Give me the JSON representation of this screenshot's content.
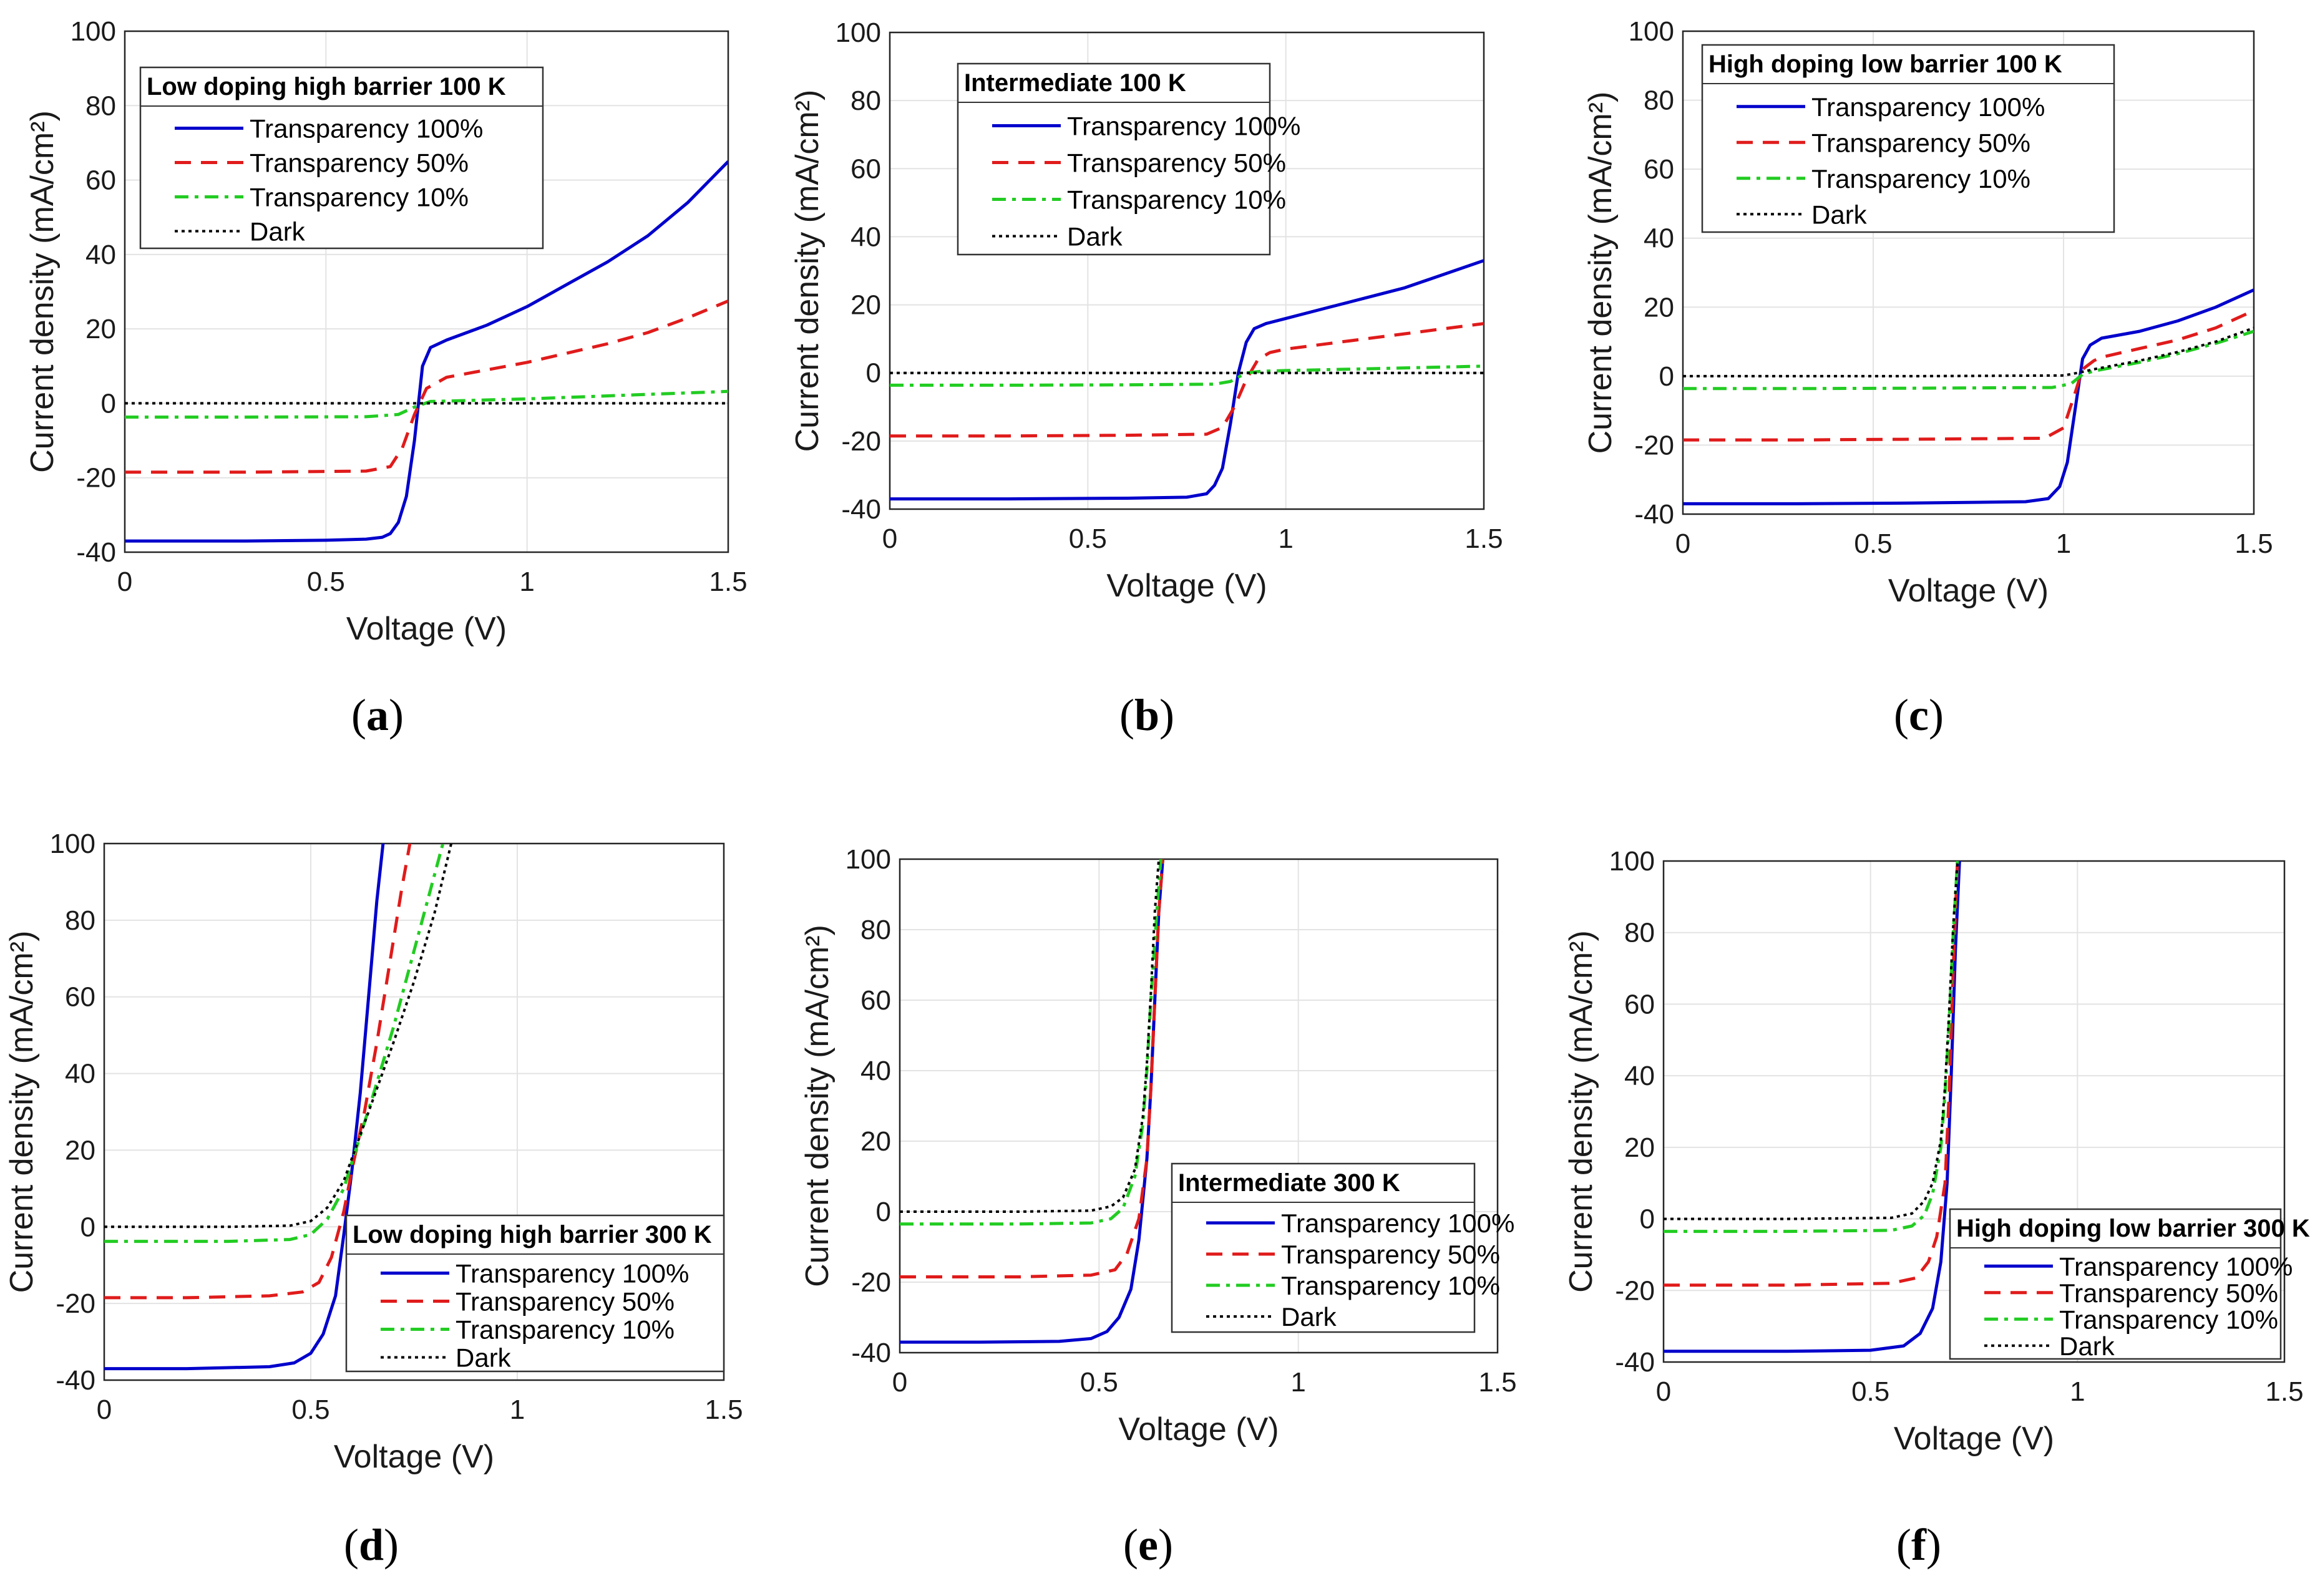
{
  "series_styles": [
    {
      "name": "Transparency 100%",
      "color": "#0000cc",
      "dash": ""
    },
    {
      "name": "Transparency 50%",
      "color": "#e01b1b",
      "dash": "26 16"
    },
    {
      "name": "Transparency 10%",
      "color": "#22cc22",
      "dash": "22 10 6 10"
    },
    {
      "name": "Dark",
      "color": "#000000",
      "dash": "5 6"
    }
  ],
  "chart_data": [
    {
      "panel": "a",
      "type": "line",
      "title": "Low doping high barrier 100 K",
      "xlabel": "Voltage (V)",
      "ylabel": "Current density (mA/cm²)",
      "xlim": [
        0,
        1.5
      ],
      "ylim": [
        -40,
        100
      ],
      "xticks": [
        "0",
        "0.5",
        "1",
        "1.5"
      ],
      "yticks": [
        "-40",
        "-20",
        "0",
        "20",
        "40",
        "60",
        "80",
        "100"
      ],
      "legend": "top-left",
      "series": [
        {
          "name": "Transparency 100%",
          "x": [
            0,
            0.3,
            0.5,
            0.6,
            0.64,
            0.66,
            0.68,
            0.7,
            0.72,
            0.74,
            0.76,
            0.8,
            0.9,
            1.0,
            1.1,
            1.2,
            1.3,
            1.4,
            1.5
          ],
          "y": [
            -37,
            -37,
            -36.8,
            -36.5,
            -36,
            -35,
            -32,
            -25,
            -10,
            10,
            15,
            17,
            21,
            26,
            32,
            38,
            45,
            54,
            65
          ]
        },
        {
          "name": "Transparency 50%",
          "x": [
            0,
            0.3,
            0.6,
            0.66,
            0.69,
            0.72,
            0.75,
            0.8,
            0.9,
            1.0,
            1.1,
            1.2,
            1.3,
            1.4,
            1.5
          ],
          "y": [
            -18.5,
            -18.5,
            -18.2,
            -17,
            -12,
            -3,
            4,
            7,
            9,
            11,
            13.5,
            16,
            19,
            23,
            27.5
          ]
        },
        {
          "name": "Transparency 10%",
          "x": [
            0,
            0.3,
            0.6,
            0.68,
            0.72,
            0.76,
            0.8,
            1.0,
            1.2,
            1.5
          ],
          "y": [
            -3.7,
            -3.7,
            -3.6,
            -3,
            -1,
            0.5,
            0.6,
            1.2,
            2,
            3.2
          ]
        },
        {
          "name": "Dark",
          "x": [
            0,
            0.5,
            1.0,
            1.5
          ],
          "y": [
            0,
            0,
            0,
            0
          ]
        }
      ]
    },
    {
      "panel": "b",
      "type": "line",
      "title": "Intermediate 100 K",
      "xlabel": "Voltage (V)",
      "ylabel": "Current density (mA/cm²)",
      "xlim": [
        0,
        1.5
      ],
      "ylim": [
        -40,
        100
      ],
      "xticks": [
        "0",
        "0.5",
        "1",
        "1.5"
      ],
      "yticks": [
        "-40",
        "-20",
        "0",
        "20",
        "40",
        "60",
        "80",
        "100"
      ],
      "legend": "top-left",
      "series": [
        {
          "name": "Transparency 100%",
          "x": [
            0,
            0.3,
            0.6,
            0.75,
            0.8,
            0.82,
            0.84,
            0.86,
            0.88,
            0.9,
            0.92,
            0.95,
            1.0,
            1.1,
            1.2,
            1.3,
            1.4,
            1.5
          ],
          "y": [
            -37,
            -37,
            -36.8,
            -36.5,
            -35.5,
            -33,
            -28,
            -15,
            0,
            9,
            13,
            14.5,
            16,
            19,
            22,
            25,
            29,
            33
          ]
        },
        {
          "name": "Transparency 50%",
          "x": [
            0,
            0.3,
            0.6,
            0.8,
            0.84,
            0.87,
            0.9,
            0.93,
            0.96,
            1.0,
            1.1,
            1.2,
            1.3,
            1.4,
            1.5
          ],
          "y": [
            -18.5,
            -18.5,
            -18.3,
            -18,
            -16,
            -10,
            -2,
            4,
            6,
            7,
            8.5,
            10,
            11.5,
            13,
            14.5
          ]
        },
        {
          "name": "Transparency 10%",
          "x": [
            0,
            0.3,
            0.6,
            0.82,
            0.86,
            0.9,
            0.94,
            1.0,
            1.2,
            1.5
          ],
          "y": [
            -3.6,
            -3.6,
            -3.5,
            -3.3,
            -2.5,
            0,
            0.5,
            0.7,
            1.2,
            2
          ]
        },
        {
          "name": "Dark",
          "x": [
            0,
            0.5,
            1.0,
            1.5
          ],
          "y": [
            0,
            0,
            0,
            0
          ]
        }
      ]
    },
    {
      "panel": "c",
      "type": "line",
      "title": "High doping low barrier 100 K",
      "xlabel": "Voltage (V)",
      "ylabel": "Current density (mA/cm²)",
      "xlim": [
        0,
        1.5
      ],
      "ylim": [
        -40,
        100
      ],
      "xticks": [
        "0",
        "0.5",
        "1",
        "1.5"
      ],
      "yticks": [
        "-40",
        "-20",
        "0",
        "20",
        "40",
        "60",
        "80",
        "100"
      ],
      "legend": "top-left",
      "series": [
        {
          "name": "Transparency 100%",
          "x": [
            0,
            0.3,
            0.6,
            0.9,
            0.96,
            0.99,
            1.01,
            1.03,
            1.05,
            1.07,
            1.1,
            1.2,
            1.3,
            1.4,
            1.5
          ],
          "y": [
            -37,
            -37,
            -36.8,
            -36.4,
            -35.5,
            -32,
            -25,
            -10,
            5,
            9,
            11,
            13,
            16,
            20,
            25
          ]
        },
        {
          "name": "Transparency 50%",
          "x": [
            0,
            0.3,
            0.6,
            0.95,
            1.0,
            1.03,
            1.05,
            1.08,
            1.1,
            1.2,
            1.3,
            1.4,
            1.5
          ],
          "y": [
            -18.5,
            -18.5,
            -18.3,
            -18,
            -15,
            -5,
            2,
            4.5,
            5.5,
            8,
            10.5,
            14,
            19
          ]
        },
        {
          "name": "Transparency 10%",
          "x": [
            0,
            0.3,
            0.6,
            0.97,
            1.02,
            1.05,
            1.08,
            1.2,
            1.3,
            1.4,
            1.5
          ],
          "y": [
            -3.6,
            -3.6,
            -3.5,
            -3.3,
            -2.2,
            0.5,
            1.5,
            4,
            6.5,
            9.5,
            13
          ]
        },
        {
          "name": "Dark",
          "x": [
            0,
            0.6,
            1.0,
            1.04,
            1.08,
            1.2,
            1.3,
            1.4,
            1.5
          ],
          "y": [
            0,
            0,
            0.2,
            1,
            2,
            4.5,
            7,
            10,
            14
          ]
        }
      ]
    },
    {
      "panel": "d",
      "type": "line",
      "title": "Low doping high barrier 300 K",
      "xlabel": "Voltage (V)",
      "ylabel": "Current density (mA/cm²)",
      "xlim": [
        0,
        1.5
      ],
      "ylim": [
        -40,
        100
      ],
      "xticks": [
        "0",
        "0.5",
        "1",
        "1.5"
      ],
      "yticks": [
        "-40",
        "-20",
        "0",
        "20",
        "40",
        "60",
        "80",
        "100"
      ],
      "legend": "bottom-right",
      "series": [
        {
          "name": "Transparency 100%",
          "x": [
            0,
            0.2,
            0.4,
            0.46,
            0.5,
            0.53,
            0.56,
            0.58,
            0.6,
            0.62,
            0.64,
            0.66,
            0.675
          ],
          "y": [
            -37,
            -37,
            -36.5,
            -35.5,
            -33,
            -28,
            -18,
            -2,
            15,
            35,
            60,
            85,
            100
          ]
        },
        {
          "name": "Transparency 50%",
          "x": [
            0,
            0.2,
            0.4,
            0.48,
            0.52,
            0.55,
            0.58,
            0.6,
            0.63,
            0.66,
            0.69,
            0.72,
            0.74
          ],
          "y": [
            -18.5,
            -18.5,
            -18,
            -17,
            -14.5,
            -8,
            4,
            15,
            30,
            48,
            68,
            88,
            100
          ]
        },
        {
          "name": "Transparency 10%",
          "x": [
            0,
            0.3,
            0.45,
            0.5,
            0.54,
            0.58,
            0.6,
            0.65,
            0.7,
            0.75,
            0.8,
            0.82
          ],
          "y": [
            -3.8,
            -3.8,
            -3.3,
            -2,
            2,
            10,
            17,
            34,
            52,
            72,
            92,
            100
          ]
        },
        {
          "name": "Dark",
          "x": [
            0,
            0.3,
            0.45,
            0.5,
            0.54,
            0.58,
            0.6,
            0.65,
            0.7,
            0.75,
            0.8,
            0.84
          ],
          "y": [
            0,
            0,
            0.3,
            1.5,
            5,
            12,
            18,
            33,
            48,
            64,
            82,
            100
          ]
        }
      ]
    },
    {
      "panel": "e",
      "type": "line",
      "title": "Intermediate 300 K",
      "xlabel": "Voltage (V)",
      "ylabel": "Current density (mA/cm²)",
      "xlim": [
        0,
        1.5
      ],
      "ylim": [
        -40,
        100
      ],
      "xticks": [
        "0",
        "0.5",
        "1",
        "1.5"
      ],
      "yticks": [
        "-40",
        "-20",
        "0",
        "20",
        "40",
        "60",
        "80",
        "100"
      ],
      "legend": "bottom-right",
      "series": [
        {
          "name": "Transparency 100%",
          "x": [
            0,
            0.2,
            0.4,
            0.48,
            0.52,
            0.55,
            0.58,
            0.6,
            0.62,
            0.63,
            0.64,
            0.65,
            0.66
          ],
          "y": [
            -37,
            -37,
            -36.8,
            -36,
            -34,
            -30,
            -22,
            -8,
            15,
            35,
            60,
            85,
            100
          ]
        },
        {
          "name": "Transparency 50%",
          "x": [
            0,
            0.3,
            0.48,
            0.54,
            0.57,
            0.6,
            0.62,
            0.63,
            0.64,
            0.65,
            0.66
          ],
          "y": [
            -18.5,
            -18.5,
            -18,
            -16.5,
            -12,
            -2,
            15,
            35,
            60,
            85,
            100
          ]
        },
        {
          "name": "Transparency 10%",
          "x": [
            0,
            0.3,
            0.48,
            0.53,
            0.56,
            0.59,
            0.61,
            0.62,
            0.63,
            0.645,
            0.655
          ],
          "y": [
            -3.5,
            -3.5,
            -3.2,
            -2,
            1,
            10,
            25,
            40,
            60,
            85,
            100
          ]
        },
        {
          "name": "Dark",
          "x": [
            0,
            0.3,
            0.48,
            0.53,
            0.56,
            0.59,
            0.61,
            0.62,
            0.63,
            0.64,
            0.65
          ],
          "y": [
            0,
            0,
            0.3,
            1.5,
            4,
            12,
            27,
            42,
            62,
            85,
            100
          ]
        }
      ]
    },
    {
      "panel": "f",
      "type": "line",
      "title": "High doping low barrier 300 K",
      "xlabel": "Voltage (V)",
      "ylabel": "Current density (mA/cm²)",
      "xlim": [
        0,
        1.5
      ],
      "ylim": [
        -40,
        100
      ],
      "xticks": [
        "0",
        "0.5",
        "1",
        "1.5"
      ],
      "yticks": [
        "-40",
        "-20",
        "0",
        "20",
        "40",
        "60",
        "80",
        "100"
      ],
      "legend": "bottom-right",
      "series": [
        {
          "name": "Transparency 100%",
          "x": [
            0,
            0.3,
            0.5,
            0.58,
            0.62,
            0.65,
            0.67,
            0.685,
            0.695,
            0.705,
            0.715
          ],
          "y": [
            -37,
            -37,
            -36.7,
            -35.5,
            -32,
            -25,
            -12,
            10,
            40,
            75,
            100
          ]
        },
        {
          "name": "Transparency 50%",
          "x": [
            0,
            0.3,
            0.55,
            0.61,
            0.64,
            0.66,
            0.68,
            0.69,
            0.7,
            0.71
          ],
          "y": [
            -18.5,
            -18.5,
            -18,
            -16.5,
            -12,
            -5,
            10,
            35,
            70,
            100
          ]
        },
        {
          "name": "Transparency 10%",
          "x": [
            0,
            0.3,
            0.55,
            0.6,
            0.63,
            0.65,
            0.67,
            0.68,
            0.69,
            0.7,
            0.71
          ],
          "y": [
            -3.5,
            -3.5,
            -3.2,
            -2,
            1,
            7,
            20,
            35,
            55,
            80,
            100
          ]
        },
        {
          "name": "Dark",
          "x": [
            0,
            0.3,
            0.55,
            0.6,
            0.63,
            0.65,
            0.67,
            0.68,
            0.69,
            0.7,
            0.71
          ],
          "y": [
            0,
            0,
            0.3,
            1.5,
            5,
            10,
            22,
            37,
            58,
            82,
            100
          ]
        }
      ]
    }
  ],
  "panel_labels": [
    "a",
    "b",
    "c",
    "d",
    "e",
    "f"
  ]
}
